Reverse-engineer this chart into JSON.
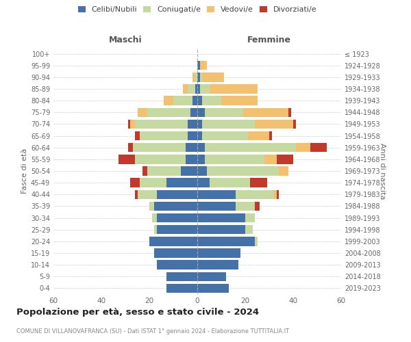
{
  "age_groups": [
    "0-4",
    "5-9",
    "10-14",
    "15-19",
    "20-24",
    "25-29",
    "30-34",
    "35-39",
    "40-44",
    "45-49",
    "50-54",
    "55-59",
    "60-64",
    "65-69",
    "70-74",
    "75-79",
    "80-84",
    "85-89",
    "90-94",
    "95-99",
    "100+"
  ],
  "birth_years": [
    "2019-2023",
    "2014-2018",
    "2009-2013",
    "2004-2008",
    "1999-2003",
    "1994-1998",
    "1989-1993",
    "1984-1988",
    "1979-1983",
    "1974-1978",
    "1969-1973",
    "1964-1968",
    "1959-1963",
    "1954-1958",
    "1949-1953",
    "1944-1948",
    "1939-1943",
    "1934-1938",
    "1929-1933",
    "1924-1928",
    "≤ 1923"
  ],
  "maschi": {
    "celibi": [
      13,
      13,
      17,
      18,
      20,
      17,
      17,
      18,
      17,
      13,
      7,
      5,
      5,
      4,
      4,
      3,
      2,
      1,
      0,
      0,
      0
    ],
    "coniugati": [
      0,
      0,
      0,
      0,
      0,
      1,
      2,
      2,
      8,
      11,
      14,
      21,
      22,
      20,
      22,
      18,
      8,
      3,
      1,
      0,
      0
    ],
    "vedovi": [
      0,
      0,
      0,
      0,
      0,
      0,
      0,
      0,
      0,
      0,
      0,
      0,
      0,
      0,
      2,
      4,
      4,
      2,
      1,
      0,
      0
    ],
    "divorziati": [
      0,
      0,
      0,
      0,
      0,
      0,
      0,
      0,
      1,
      4,
      2,
      7,
      2,
      2,
      1,
      0,
      0,
      0,
      0,
      0,
      0
    ]
  },
  "femmine": {
    "nubili": [
      13,
      12,
      17,
      18,
      24,
      20,
      20,
      16,
      16,
      5,
      4,
      3,
      3,
      2,
      2,
      3,
      2,
      1,
      1,
      1,
      0
    ],
    "coniugate": [
      0,
      0,
      0,
      0,
      1,
      3,
      4,
      8,
      16,
      17,
      30,
      25,
      38,
      19,
      22,
      16,
      8,
      4,
      1,
      0,
      0
    ],
    "vedove": [
      0,
      0,
      0,
      0,
      0,
      0,
      0,
      0,
      1,
      0,
      4,
      5,
      6,
      9,
      16,
      19,
      15,
      20,
      9,
      3,
      0
    ],
    "divorziate": [
      0,
      0,
      0,
      0,
      0,
      0,
      0,
      2,
      1,
      7,
      0,
      7,
      7,
      1,
      1,
      1,
      0,
      0,
      0,
      0,
      0
    ]
  },
  "colors": {
    "celibi": "#4472a8",
    "coniugati": "#c5d9a0",
    "vedovi": "#f2c06e",
    "divorziati": "#c0392b"
  },
  "title": "Popolazione per età, sesso e stato civile - 2024",
  "subtitle": "COMUNE DI VILLANOVAFRANCA (SU) - Dati ISTAT 1° gennaio 2024 - Elaborazione TUTTITALIA.IT",
  "xlabel_left": "Maschi",
  "xlabel_right": "Femmine",
  "ylabel_left": "Fasce di età",
  "ylabel_right": "Anni di nascita",
  "xlim": 60,
  "bg_color": "#ffffff",
  "grid_color": "#cccccc",
  "legend_labels": [
    "Celibi/Nubili",
    "Coniugati/e",
    "Vedovi/e",
    "Divorziati/e"
  ]
}
